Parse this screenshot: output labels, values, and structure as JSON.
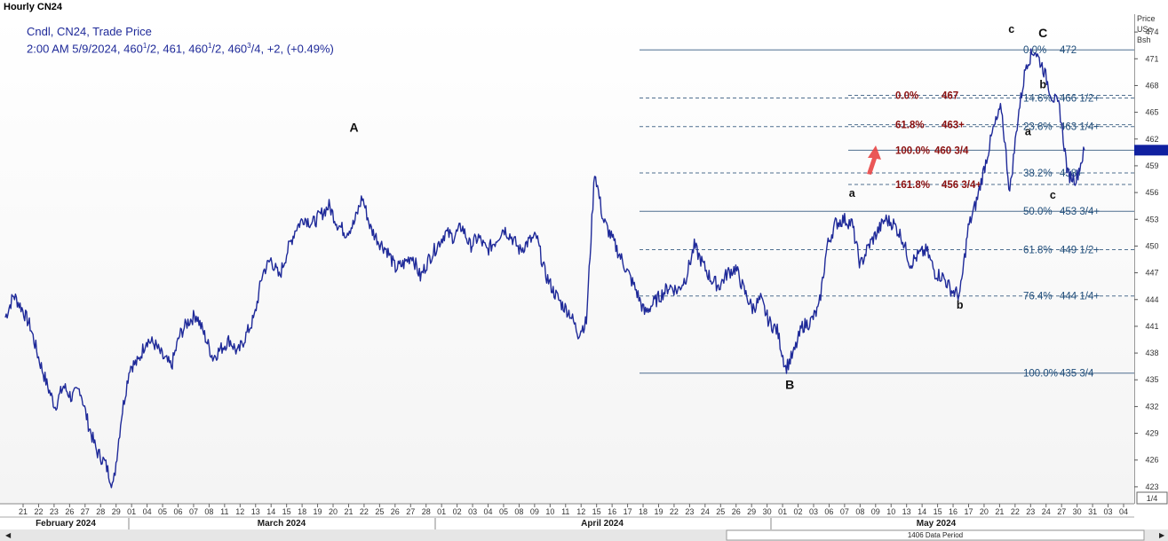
{
  "header": {
    "title": "Hourly CN24"
  },
  "legend": {
    "line1": "Cndl, CN24, Trade Price",
    "line2_prefix": "2:00 AM 5/9/2024, 460",
    "line2_a": "1",
    "line2_b": "/2, 461, 460",
    "line2_c": "1",
    "line2_d": "/2, 460",
    "line2_e": "3",
    "line2_f": "/4, +2, (+0.49%)"
  },
  "axis_unit": {
    "line1": "Price",
    "line2": "USc",
    "line3": "Bsh"
  },
  "corner_label": "1/4",
  "data_period": "1406 Data Period",
  "colors": {
    "candle": "#1f2a99",
    "fib_line": "#4f6f8f",
    "current": "#1020a0",
    "arrow": "#e84545"
  },
  "chart_data": {
    "type": "line",
    "ylim": [
      421.2,
      476
    ],
    "y_ticks": [
      423,
      426,
      429,
      432,
      435,
      438,
      441,
      444,
      447,
      450,
      453,
      456,
      459,
      462,
      465,
      468,
      471,
      474
    ],
    "current_price": 460.75,
    "x_dates": [
      "21",
      "22",
      "23",
      "26",
      "27",
      "28",
      "29",
      "01",
      "04",
      "05",
      "06",
      "07",
      "08",
      "11",
      "12",
      "13",
      "14",
      "15",
      "18",
      "19",
      "20",
      "21",
      "22",
      "25",
      "26",
      "27",
      "28",
      "01",
      "02",
      "03",
      "04",
      "05",
      "08",
      "09",
      "10",
      "11",
      "12",
      "15",
      "16",
      "17",
      "18",
      "19",
      "22",
      "23",
      "24",
      "25",
      "26",
      "29",
      "30",
      "01",
      "02",
      "03",
      "06",
      "07",
      "08",
      "09",
      "10",
      "13",
      "14",
      "15",
      "16",
      "17",
      "20",
      "21",
      "22",
      "23",
      "24",
      "27",
      "30",
      "31",
      "03",
      "04"
    ],
    "months": [
      "February 2024",
      "March 2024",
      "April 2024",
      "May 2024"
    ],
    "fib_retracement": [
      {
        "label": "0.0%",
        "value_text": "472",
        "price": 472
      },
      {
        "label": "14.6%",
        "value_text": "466 1/2+",
        "price": 466.6
      },
      {
        "label": "23.6%",
        "value_text": "463 1/4+",
        "price": 463.4
      },
      {
        "label": "38.2%",
        "value_text": "458+",
        "price": 458.2
      },
      {
        "label": "50.0%",
        "value_text": "453 3/4+",
        "price": 453.9
      },
      {
        "label": "61.8%",
        "value_text": "449 1/2+",
        "price": 449.6
      },
      {
        "label": "76.4%",
        "value_text": "444 1/4+",
        "price": 444.4
      },
      {
        "label": "100.0%",
        "value_text": "435 3/4",
        "price": 435.75
      }
    ],
    "fib_projection": [
      {
        "label": "0.0%",
        "value_text": "467",
        "price": 466.9
      },
      {
        "label": "61.8%",
        "value_text": "463+",
        "price": 463.6
      },
      {
        "label": "100.0%",
        "value_text": "460 3/4",
        "price": 460.75
      },
      {
        "label": "161.8%",
        "value_text": "456 3/4+",
        "price": 456.9
      }
    ],
    "wave_labels": [
      {
        "text": "A",
        "date_index": 42,
        "price": 462.8,
        "big": true
      },
      {
        "text": "B",
        "date_index": 94.5,
        "price": 434.0,
        "big": true
      },
      {
        "text": "a",
        "date_index": 102,
        "price": 455.5,
        "big": false
      },
      {
        "text": "b",
        "date_index": 115,
        "price": 443.0,
        "big": false
      },
      {
        "text": "c",
        "date_index": 121.2,
        "price": 473.9,
        "big": false
      },
      {
        "text": "C",
        "date_index": 125,
        "price": 473.4,
        "big": true
      },
      {
        "text": "b",
        "date_index": 125,
        "price": 467.7,
        "big": false
      },
      {
        "text": "a",
        "date_index": 123.2,
        "price": 462.4,
        "big": false
      },
      {
        "text": "c",
        "date_index": 126.2,
        "price": 455.3,
        "big": false
      }
    ],
    "price_path": [
      [
        0,
        442
      ],
      [
        1,
        444.5
      ],
      [
        2,
        443
      ],
      [
        3,
        441
      ],
      [
        4,
        437.5
      ],
      [
        5,
        434.5
      ],
      [
        6,
        432
      ],
      [
        7,
        434.3
      ],
      [
        8,
        433
      ],
      [
        9,
        434
      ],
      [
        10,
        430
      ],
      [
        11,
        427
      ],
      [
        12,
        425.7
      ],
      [
        13,
        423.1
      ],
      [
        14,
        431
      ],
      [
        15,
        436.5
      ],
      [
        16,
        437
      ],
      [
        17,
        439.5
      ],
      [
        18,
        439
      ],
      [
        19,
        437.5
      ],
      [
        20,
        436.5
      ],
      [
        21,
        440
      ],
      [
        22,
        441.5
      ],
      [
        23,
        442.3
      ],
      [
        24,
        440
      ],
      [
        25,
        437.5
      ],
      [
        26,
        438.5
      ],
      [
        27,
        439.5
      ],
      [
        28,
        438
      ],
      [
        29,
        440
      ],
      [
        30,
        442
      ],
      [
        31,
        447
      ],
      [
        32,
        448.5
      ],
      [
        33,
        446.5
      ],
      [
        34,
        449.5
      ],
      [
        35,
        452
      ],
      [
        36,
        453.2
      ],
      [
        37,
        452.5
      ],
      [
        38,
        453.5
      ],
      [
        39,
        454.5
      ],
      [
        40,
        452.5
      ],
      [
        41,
        451.5
      ],
      [
        42,
        452.5
      ],
      [
        43,
        455.5
      ],
      [
        44,
        452
      ],
      [
        45,
        450.5
      ],
      [
        46,
        449.5
      ],
      [
        47,
        447.5
      ],
      [
        48,
        448
      ],
      [
        49,
        449
      ],
      [
        50,
        446.5
      ],
      [
        51,
        448.5
      ],
      [
        52,
        450
      ],
      [
        53,
        451.5
      ],
      [
        54,
        451
      ],
      [
        55,
        452.2
      ],
      [
        56,
        450
      ],
      [
        57,
        451
      ],
      [
        58,
        449.5
      ],
      [
        59,
        450.5
      ],
      [
        60,
        452
      ],
      [
        61,
        451
      ],
      [
        62,
        449.5
      ],
      [
        63,
        450.5
      ],
      [
        64,
        451
      ],
      [
        65,
        447
      ],
      [
        66,
        445
      ],
      [
        67,
        443.5
      ],
      [
        68,
        442.5
      ],
      [
        69,
        440.2
      ],
      [
        70,
        441.5
      ],
      [
        71,
        458.5
      ],
      [
        72,
        453
      ],
      [
        73,
        451
      ],
      [
        74,
        449
      ],
      [
        75,
        447
      ],
      [
        76,
        445
      ],
      [
        77,
        442.5
      ],
      [
        78,
        443.5
      ],
      [
        79,
        444.5
      ],
      [
        80,
        445.5
      ],
      [
        81,
        445
      ],
      [
        82,
        446.5
      ],
      [
        83,
        450
      ],
      [
        84,
        448
      ],
      [
        85,
        446.3
      ],
      [
        86,
        445.5
      ],
      [
        87,
        447
      ],
      [
        88,
        447.5
      ],
      [
        89,
        445
      ],
      [
        90,
        443
      ],
      [
        91,
        444
      ],
      [
        92,
        441.5
      ],
      [
        93,
        440.5
      ],
      [
        94,
        436.3
      ],
      [
        95,
        438
      ],
      [
        96,
        441
      ],
      [
        97,
        441.5
      ],
      [
        98,
        443
      ],
      [
        99,
        450
      ],
      [
        100,
        452.5
      ],
      [
        101,
        453
      ],
      [
        102,
        452.5
      ],
      [
        103,
        447.8
      ],
      [
        104,
        450
      ],
      [
        105,
        451.5
      ],
      [
        106,
        453
      ],
      [
        107,
        452.5
      ],
      [
        108,
        451
      ],
      [
        109,
        448
      ],
      [
        110,
        449
      ],
      [
        111,
        449.5
      ],
      [
        112,
        447
      ],
      [
        113,
        446.5
      ],
      [
        114,
        445
      ],
      [
        115,
        444.5
      ],
      [
        116,
        452
      ],
      [
        117,
        455
      ],
      [
        118,
        459
      ],
      [
        119,
        463
      ],
      [
        120,
        465.5
      ],
      [
        121,
        456
      ],
      [
        122,
        464.5
      ],
      [
        123,
        470.5
      ],
      [
        124,
        472
      ],
      [
        125,
        470
      ],
      [
        126,
        467
      ],
      [
        127,
        465.5
      ],
      [
        128,
        458
      ],
      [
        129,
        457.5
      ],
      [
        130,
        460.75
      ]
    ]
  }
}
